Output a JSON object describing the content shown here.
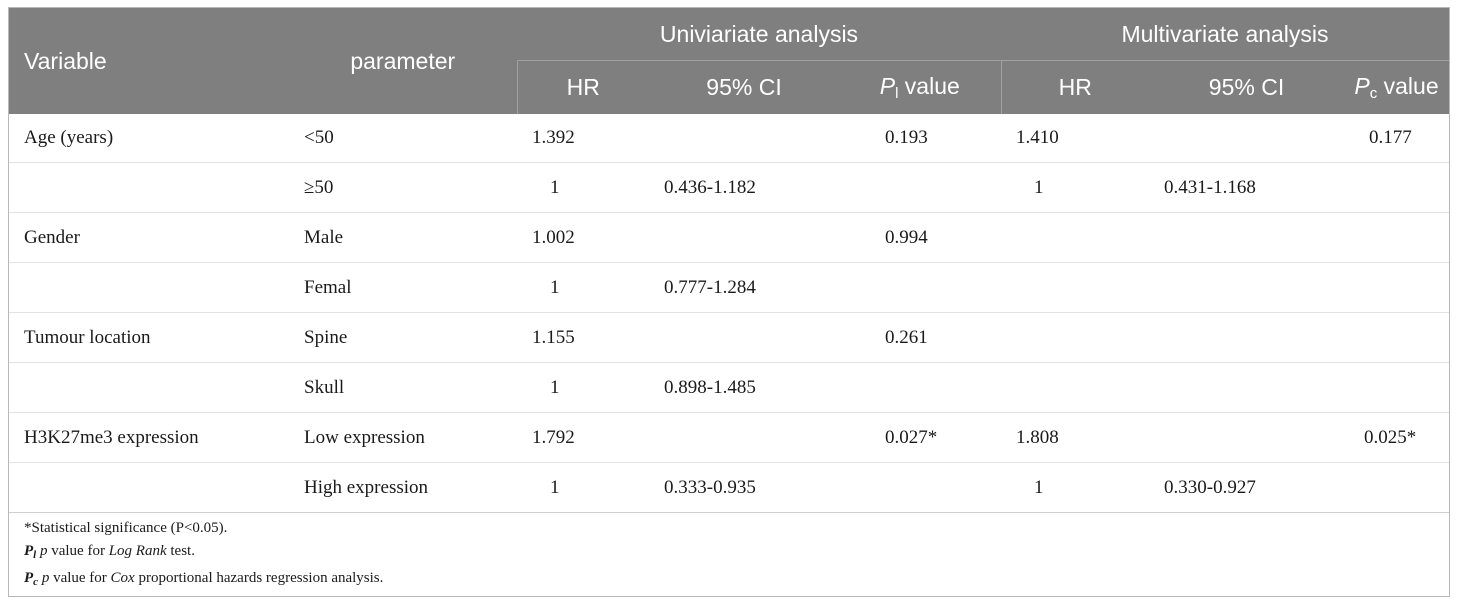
{
  "header": {
    "variable": "Variable",
    "parameter": "parameter",
    "univariate": "Univiariate analysis",
    "multivariate": "Multivariate analysis",
    "hr": "HR",
    "ci": "95% CI",
    "pl_symbol": "P",
    "pl_sub": "l",
    "pc_symbol": "P",
    "pc_sub": "c",
    "value": " value"
  },
  "rows": [
    {
      "variable": "Age (years)",
      "parameter": "<50",
      "u_hr": "1.392",
      "u_ci": "",
      "u_p": "0.193",
      "m_hr": "1.410",
      "m_ci": "",
      "m_p": "0.177"
    },
    {
      "variable": "",
      "parameter": "≥50",
      "u_hr": "1",
      "u_ci": "0.436-1.182",
      "u_p": "",
      "m_hr": "1",
      "m_ci": "0.431-1.168",
      "m_p": ""
    },
    {
      "variable": "Gender",
      "parameter": "Male",
      "u_hr": "1.002",
      "u_ci": "",
      "u_p": "0.994",
      "m_hr": "",
      "m_ci": "",
      "m_p": ""
    },
    {
      "variable": "",
      "parameter": "Femal",
      "u_hr": "1",
      "u_ci": "0.777-1.284",
      "u_p": "",
      "m_hr": "",
      "m_ci": "",
      "m_p": ""
    },
    {
      "variable": "Tumour location",
      "parameter": "Spine",
      "u_hr": "1.155",
      "u_ci": "",
      "u_p": "0.261",
      "m_hr": "",
      "m_ci": "",
      "m_p": ""
    },
    {
      "variable": "",
      "parameter": "Skull",
      "u_hr": "1",
      "u_ci": "0.898-1.485",
      "u_p": "",
      "m_hr": "",
      "m_ci": "",
      "m_p": ""
    },
    {
      "variable": "H3K27me3 expression",
      "parameter": "Low expression",
      "u_hr": "1.792",
      "u_ci": "",
      "u_p": "0.027*",
      "m_hr": "1.808",
      "m_ci": "",
      "m_p": "0.025*"
    },
    {
      "variable": "",
      "parameter": "High expression",
      "u_hr": "1",
      "u_ci": "0.333-0.935",
      "u_p": "",
      "m_hr": "1",
      "m_ci": "0.330-0.927",
      "m_p": ""
    }
  ],
  "notes": {
    "significance": "*Statistical significance (P<0.05).",
    "pl_label": "P",
    "pl_sub": "l",
    "pl_text_1": " p",
    "pl_text_2": " value for ",
    "pl_test": "Log Rank",
    "pl_text_3": " test.",
    "pc_label": "P",
    "pc_sub": "c",
    "pc_text_1": " p",
    "pc_text_2": " value for ",
    "pc_test": "Cox",
    "pc_text_3": " proportional hazards regression analysis."
  }
}
